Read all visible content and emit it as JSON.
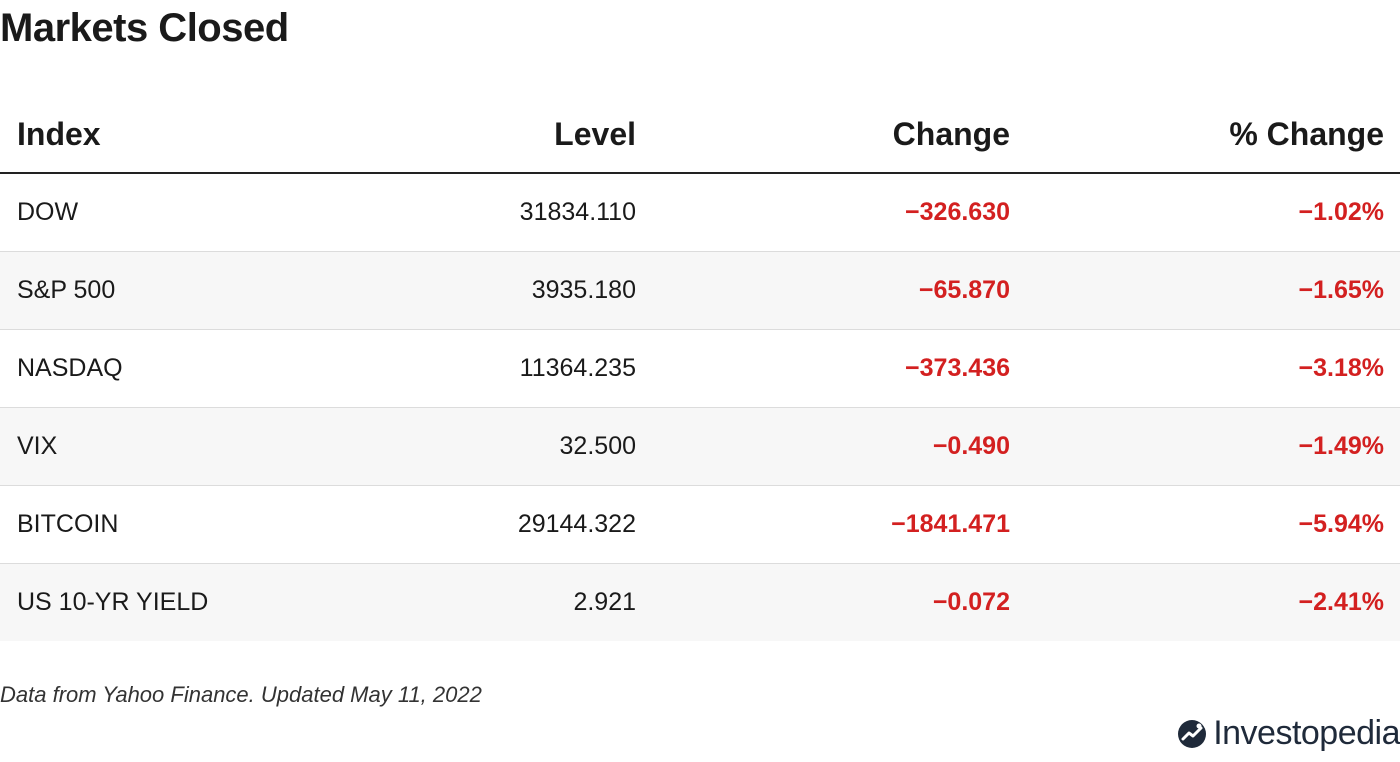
{
  "title": "Markets Closed",
  "table": {
    "headers": [
      "Index",
      "Level",
      "Change",
      "% Change"
    ],
    "rows": [
      {
        "index": "DOW",
        "level": "31834.110",
        "change": "−326.630",
        "pct": "−1.02%"
      },
      {
        "index": "S&P 500",
        "level": "3935.180",
        "change": "−65.870",
        "pct": "−1.65%"
      },
      {
        "index": "NASDAQ",
        "level": "11364.235",
        "change": "−373.436",
        "pct": "−3.18%"
      },
      {
        "index": "VIX",
        "level": "32.500",
        "change": "−0.490",
        "pct": "−1.49%"
      },
      {
        "index": "BITCOIN",
        "level": "29144.322",
        "change": "−1841.471",
        "pct": "−5.94%"
      },
      {
        "index": "US 10-YR YIELD",
        "level": "2.921",
        "change": "−0.072",
        "pct": "−2.41%"
      }
    ]
  },
  "footer": {
    "source": "Data from Yahoo Finance. Updated May 11, 2022",
    "logo_text": "Investopedia",
    "logo_icon": "investopedia-logo-icon"
  },
  "colors": {
    "negative": "#d32020",
    "header_rule": "#222222",
    "row_alt": "#f7f7f7",
    "logo_dark": "#1f2a3a"
  }
}
